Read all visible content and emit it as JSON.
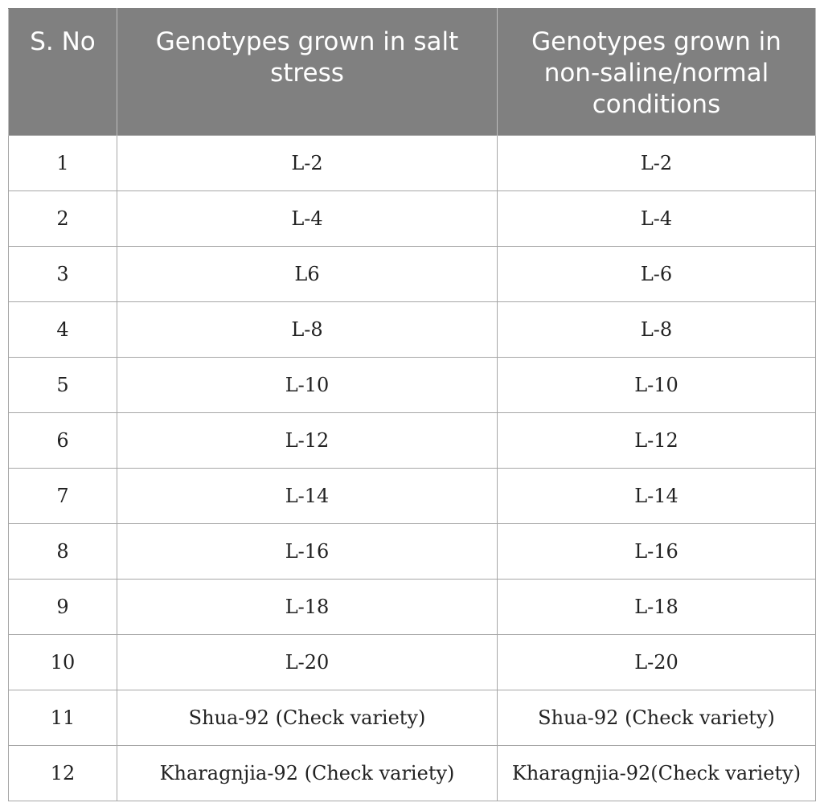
{
  "table": {
    "headers": [
      "S. No",
      "Genotypes grown in salt stress",
      "Genotypes grown in non-saline/normal conditions"
    ],
    "rows": [
      [
        "1",
        "L-2",
        "L-2"
      ],
      [
        "2",
        "L-4",
        "L-4"
      ],
      [
        "3",
        "L6",
        "L-6"
      ],
      [
        "4",
        "L-8",
        "L-8"
      ],
      [
        "5",
        "L-10",
        "L-10"
      ],
      [
        "6",
        "L-12",
        "L-12"
      ],
      [
        "7",
        "L-14",
        "L-14"
      ],
      [
        "8",
        "L-16",
        "L-16"
      ],
      [
        "9",
        "L-18",
        "L-18"
      ],
      [
        "10",
        "L-20",
        "L-20"
      ],
      [
        "11",
        "Shua-92 (Check variety)",
        "Shua-92 (Check variety)"
      ],
      [
        "12",
        "Kharagnjia-92 (Check variety)",
        "Kharagnjia-92(Check variety)"
      ]
    ],
    "header_bg": "#808080",
    "header_text_color": "#ffffff",
    "grid_color": "#a6a6a6"
  }
}
